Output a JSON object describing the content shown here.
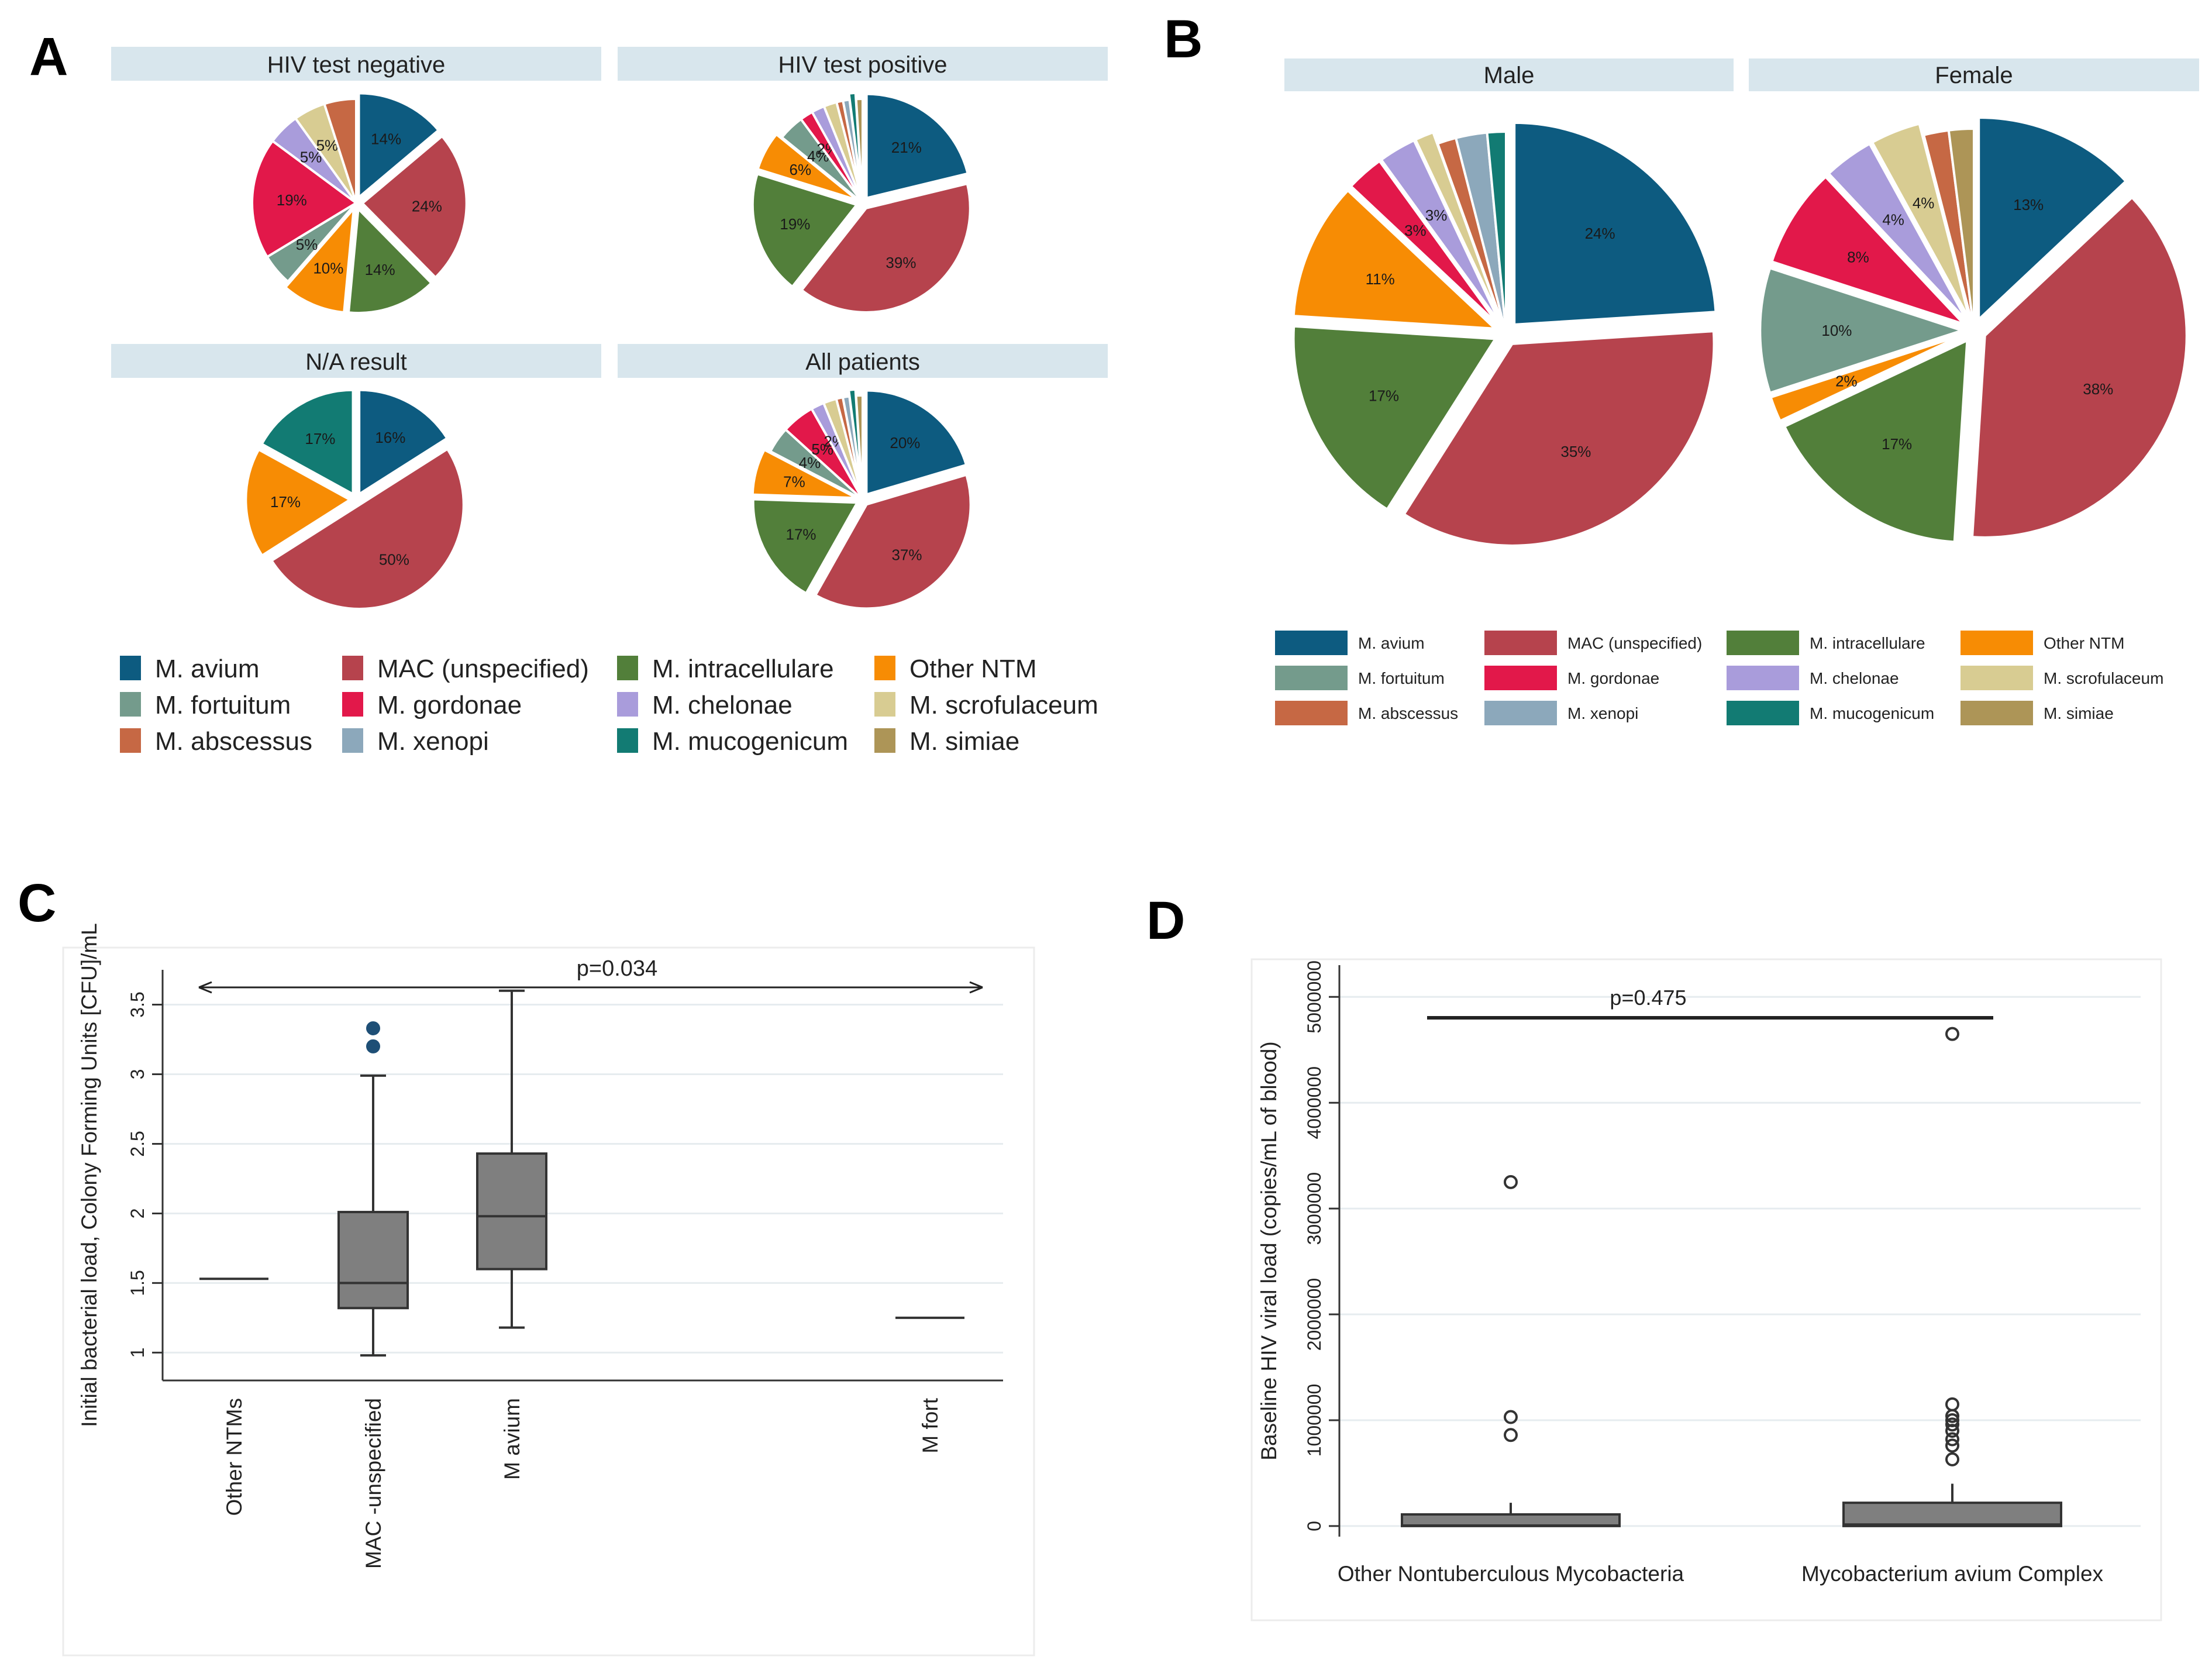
{
  "colors": {
    "M. avium": "#0d5b80",
    "MAC (unspecified)": "#b6434d",
    "M. intracellulare": "#527f3a",
    "Other NTM": "#f78c04",
    "M. fortuitum": "#749b8c",
    "M. gordonae": "#e2184a",
    "M. chelonae": "#a99cdb",
    "M. scrofulaceum": "#d8cc92",
    "M. abscessus": "#c66844",
    "M. xenopi": "#8ca8bb",
    "M. mucogenicum": "#127b73",
    "M. simiae": "#ad9557",
    "strip": "#d8e6ed",
    "box_fill": "#7f7f7f",
    "dot_blue": "#1e4f76"
  },
  "panels": {
    "a": {
      "letter": "A"
    },
    "b": {
      "letter": "B"
    },
    "c": {
      "letter": "C"
    },
    "d": {
      "letter": "D"
    }
  },
  "chart_data": [
    {
      "id": "A",
      "type": "pie",
      "title": "A",
      "subplots": [
        {
          "title": "HIV test negative",
          "slices": [
            {
              "label": "M. avium",
              "value": 14,
              "text": "14%"
            },
            {
              "label": "MAC (unspecified)",
              "value": 24,
              "text": "24%"
            },
            {
              "label": "M. intracellulare",
              "value": 14,
              "text": "14%"
            },
            {
              "label": "Other NTM",
              "value": 10,
              "text": "10%"
            },
            {
              "label": "M. fortuitum",
              "value": 5,
              "text": "5%"
            },
            {
              "label": "M. gordonae",
              "value": 19,
              "text": "19%"
            },
            {
              "label": "M. chelonae",
              "value": 5,
              "text": "5%"
            },
            {
              "label": "M. scrofulaceum",
              "value": 5,
              "text": "5%"
            },
            {
              "label": "M. abscessus",
              "value": 5,
              "text": ""
            }
          ]
        },
        {
          "title": "HIV test positive",
          "slices": [
            {
              "label": "M. avium",
              "value": 21,
              "text": "21%"
            },
            {
              "label": "MAC (unspecified)",
              "value": 39,
              "text": "39%"
            },
            {
              "label": "M. intracellulare",
              "value": 19,
              "text": "19%"
            },
            {
              "label": "Other NTM",
              "value": 6,
              "text": "6%"
            },
            {
              "label": "M. fortuitum",
              "value": 4,
              "text": "4%"
            },
            {
              "label": "M. gordonae",
              "value": 2,
              "text": "2%"
            },
            {
              "label": "M. chelonae",
              "value": 2,
              "text": ""
            },
            {
              "label": "M. scrofulaceum",
              "value": 2,
              "text": ""
            },
            {
              "label": "M. abscessus",
              "value": 1,
              "text": ""
            },
            {
              "label": "M. xenopi",
              "value": 1,
              "text": ""
            },
            {
              "label": "M. mucogenicum",
              "value": 1,
              "text": ""
            },
            {
              "label": "M. simiae",
              "value": 1,
              "text": ""
            }
          ]
        },
        {
          "title": "N/A result",
          "slices": [
            {
              "label": "M. avium",
              "value": 16,
              "text": "16%"
            },
            {
              "label": "MAC (unspecified)",
              "value": 50,
              "text": "50%"
            },
            {
              "label": "Other NTM",
              "value": 17,
              "text": "17%"
            },
            {
              "label": "M. mucogenicum",
              "value": 17,
              "text": "17%"
            }
          ]
        },
        {
          "title": "All patients",
          "slices": [
            {
              "label": "M. avium",
              "value": 20,
              "text": "20%"
            },
            {
              "label": "MAC (unspecified)",
              "value": 37,
              "text": "37%"
            },
            {
              "label": "M. intracellulare",
              "value": 17,
              "text": "17%"
            },
            {
              "label": "Other NTM",
              "value": 7,
              "text": "7%"
            },
            {
              "label": "M. fortuitum",
              "value": 4,
              "text": "4%"
            },
            {
              "label": "M. gordonae",
              "value": 5,
              "text": "5%"
            },
            {
              "label": "M. chelonae",
              "value": 2,
              "text": "2%"
            },
            {
              "label": "M. scrofulaceum",
              "value": 2,
              "text": ""
            },
            {
              "label": "M. abscessus",
              "value": 1,
              "text": ""
            },
            {
              "label": "M. xenopi",
              "value": 1,
              "text": ""
            },
            {
              "label": "M. mucogenicum",
              "value": 1,
              "text": ""
            },
            {
              "label": "M. simiae",
              "value": 1,
              "text": ""
            }
          ]
        }
      ],
      "legend": [
        "M. avium",
        "MAC (unspecified)",
        "M. intracellulare",
        "Other NTM",
        "M. fortuitum",
        "M. gordonae",
        "M. chelonae",
        "M. scrofulaceum",
        "M. abscessus",
        "M. xenopi",
        "M. mucogenicum",
        "M. simiae"
      ]
    },
    {
      "id": "B",
      "type": "pie",
      "title": "B",
      "subplots": [
        {
          "title": "Male",
          "slices": [
            {
              "label": "M. avium",
              "value": 24,
              "text": "24%"
            },
            {
              "label": "MAC (unspecified)",
              "value": 35,
              "text": "35%"
            },
            {
              "label": "M. intracellulare",
              "value": 17,
              "text": "17%"
            },
            {
              "label": "Other NTM",
              "value": 11,
              "text": "11%"
            },
            {
              "label": "M. gordonae",
              "value": 3,
              "text": "3%"
            },
            {
              "label": "M. chelonae",
              "value": 3,
              "text": "3%"
            },
            {
              "label": "M. scrofulaceum",
              "value": 1.5,
              "text": ""
            },
            {
              "label": "M. abscessus",
              "value": 1.5,
              "text": ""
            },
            {
              "label": "M. xenopi",
              "value": 2.5,
              "text": ""
            },
            {
              "label": "M. mucogenicum",
              "value": 1.5,
              "text": ""
            }
          ]
        },
        {
          "title": "Female",
          "slices": [
            {
              "label": "M. avium",
              "value": 13,
              "text": "13%"
            },
            {
              "label": "MAC (unspecified)",
              "value": 38,
              "text": "38%"
            },
            {
              "label": "M. intracellulare",
              "value": 17,
              "text": "17%"
            },
            {
              "label": "Other NTM",
              "value": 2,
              "text": "2%"
            },
            {
              "label": "M. fortuitum",
              "value": 10,
              "text": "10%"
            },
            {
              "label": "M. gordonae",
              "value": 8,
              "text": "8%"
            },
            {
              "label": "M. chelonae",
              "value": 4,
              "text": "4%"
            },
            {
              "label": "M. scrofulaceum",
              "value": 4,
              "text": "4%"
            },
            {
              "label": "M. abscessus",
              "value": 2,
              "text": ""
            },
            {
              "label": "M. simiae",
              "value": 2,
              "text": ""
            }
          ]
        }
      ],
      "legend": [
        "M. avium",
        "MAC (unspecified)",
        "M. intracellulare",
        "Other NTM",
        "M. fortuitum",
        "M. gordonae",
        "M. chelonae",
        "M. scrofulaceum",
        "M. abscessus",
        "M. xenopi",
        "M. mucogenicum",
        "M. simiae"
      ]
    },
    {
      "id": "C",
      "type": "box",
      "title": "C",
      "ylabel": "Initial bacterial load, Colony Forming Units [CFU]/mL",
      "ylim": [
        0.8,
        3.75
      ],
      "yticks": [
        "1",
        "1.5",
        "2",
        "2.5",
        "3",
        "3.5"
      ],
      "annotation": "p=0.034",
      "groups": [
        {
          "label": "Other NTMs",
          "single": 1.53
        },
        {
          "label": "MAC -unspecified",
          "min": 0.98,
          "q1": 1.32,
          "median": 1.5,
          "q3": 2.01,
          "max": 2.99,
          "outliers": [
            3.2,
            3.33
          ]
        },
        {
          "label": "M avium",
          "min": 1.18,
          "q1": 1.6,
          "median": 1.98,
          "q3": 2.43,
          "max": 3.6,
          "outliers": []
        },
        {
          "label": "M fort",
          "single": 1.25
        }
      ]
    },
    {
      "id": "D",
      "type": "box",
      "title": "D",
      "ylabel": "Baseline HIV viral load (copies/mL of blood)",
      "ylim": [
        -100000,
        5300000
      ],
      "yticks": [
        "0",
        "1000000",
        "2000000",
        "3000000",
        "4000000",
        "5000000"
      ],
      "annotation": "p=0.475",
      "groups": [
        {
          "label": "Other Nontuberculous Mycobacteria",
          "min": 0,
          "q1": 0,
          "median": 5000,
          "q3": 110000,
          "max": 220000,
          "outliers": [
            860000,
            1030000,
            3250000
          ]
        },
        {
          "label": "Mycobacterium avium Complex",
          "min": 0,
          "q1": 0,
          "median": 15000,
          "q3": 220000,
          "max": 400000,
          "outliers": [
            630000,
            760000,
            820000,
            900000,
            960000,
            1000000,
            1040000,
            1150000,
            4650000
          ]
        }
      ]
    }
  ]
}
